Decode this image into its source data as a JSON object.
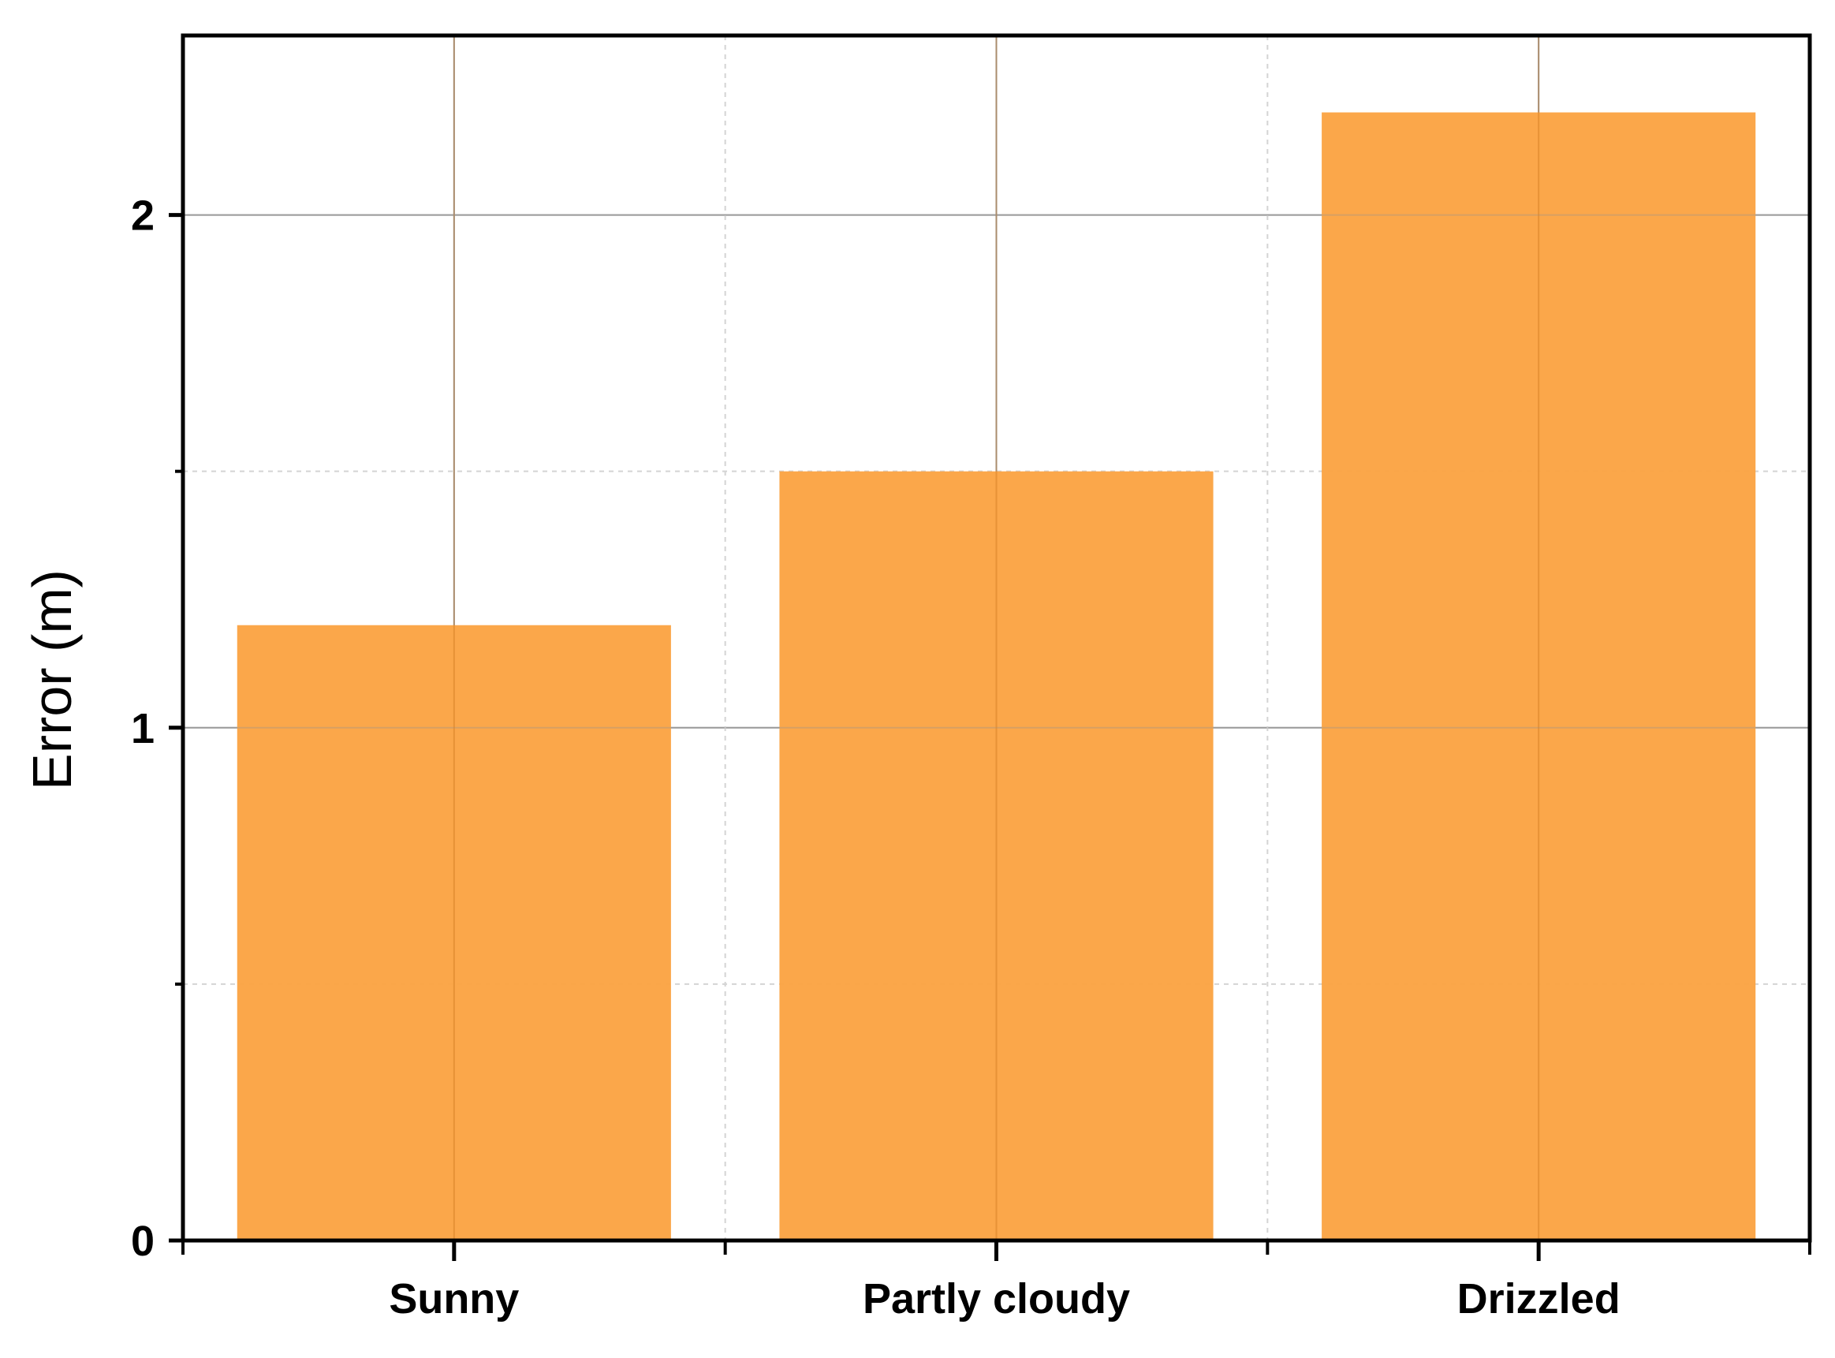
{
  "chart_data": {
    "type": "bar",
    "categories": [
      "Sunny",
      "Partly cloudy",
      "Drizzled"
    ],
    "values": [
      1.2,
      1.5,
      2.2
    ],
    "title": "",
    "xlabel": "",
    "ylabel": "Error (m)",
    "ylim": [
      0,
      2.35
    ],
    "yticks": [
      0,
      1,
      2
    ],
    "ytick_labels": [
      "0",
      "1",
      "2"
    ],
    "grid": true,
    "bar_color": "#FBA343",
    "gridline_color": "#9a9a9a"
  }
}
